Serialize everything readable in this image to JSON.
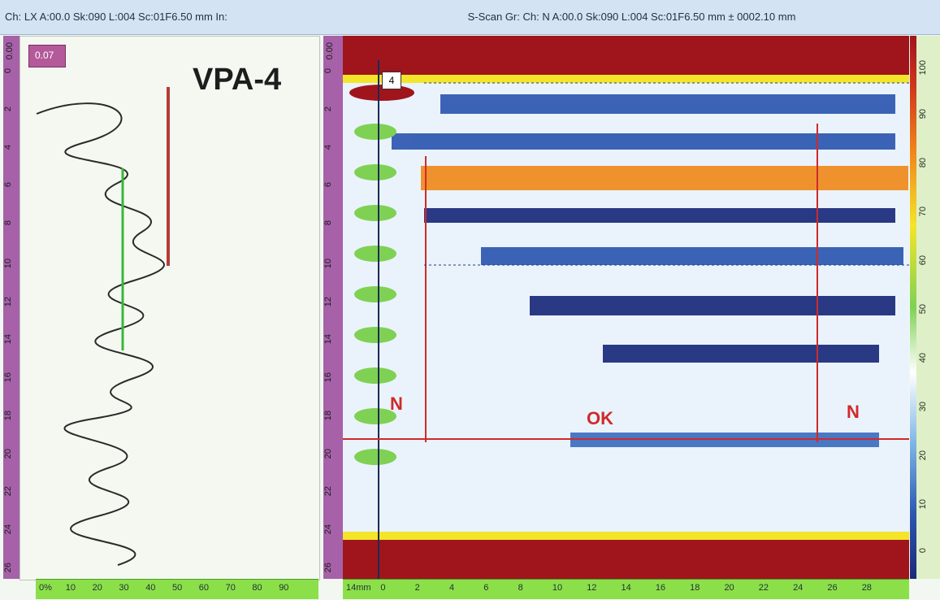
{
  "headers": {
    "left": "Ch: LX A:00.0 Sk:090 L:004 Sc:01F6.50 mm In:",
    "right": "S-Scan Gr: Ch: N A:00.0 Sk:090 L:004 Sc:01F6.50 mm ± 0002.10 mm"
  },
  "left_panel": {
    "ruler_unit": "0.00",
    "value_box": "0.07",
    "title": "VPA-4",
    "ruler_ticks": [
      "0",
      "2",
      "4",
      "6",
      "8",
      "10",
      "12",
      "14",
      "16",
      "18",
      "20",
      "22",
      "24",
      "26"
    ],
    "x_ticks": [
      "0%",
      "10",
      "20",
      "30",
      "40",
      "50",
      "60",
      "70",
      "80",
      "90"
    ]
  },
  "right_panel": {
    "ruler_unit": "0.00",
    "cursor_label": "4",
    "ruler_ticks": [
      "0",
      "2",
      "4",
      "6",
      "8",
      "10",
      "12",
      "14",
      "16",
      "18",
      "20",
      "22",
      "24",
      "26"
    ],
    "x_ticks": [
      "14mm",
      "0",
      "2",
      "4",
      "6",
      "8",
      "10",
      "12",
      "14",
      "16",
      "18",
      "20",
      "22",
      "24",
      "26",
      "28"
    ],
    "labels": {
      "left_n": "N",
      "ok": "OK",
      "right_n": "N"
    }
  },
  "colorbar": {
    "scale_ticks": [
      "100",
      "90",
      "80",
      "70",
      "60",
      "50",
      "40",
      "30",
      "20",
      "10",
      "0"
    ],
    "accent": "#a0141c"
  }
}
